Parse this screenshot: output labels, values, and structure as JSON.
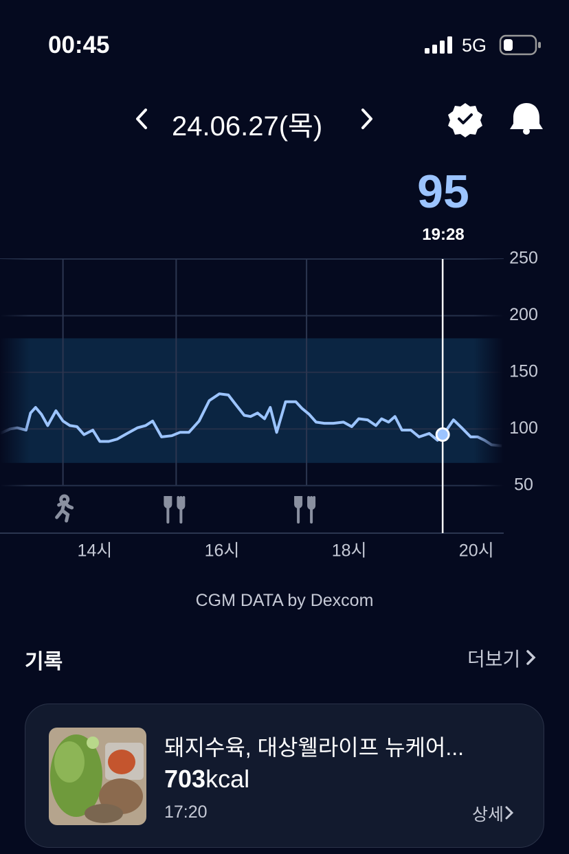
{
  "status_bar": {
    "time": "00:45",
    "network": "5G"
  },
  "header": {
    "date": "24.06.27(목)"
  },
  "chart_data": {
    "type": "line",
    "color": "#9cc4ff",
    "grid": true,
    "cursor": {
      "x": 19.47,
      "value": 95,
      "time": "19:28"
    },
    "target_range": [
      70,
      180
    ],
    "xlim": [
      12.51,
      20.43
    ],
    "ylim": [
      8,
      250
    ],
    "yticks": [
      50,
      100,
      150,
      200,
      250
    ],
    "xticks": [
      {
        "value": 14,
        "label": "14시"
      },
      {
        "value": 16,
        "label": "16시"
      },
      {
        "value": 18,
        "label": "18시"
      },
      {
        "value": 20,
        "label": "20시"
      }
    ],
    "events": [
      {
        "icon": "run",
        "x": 13.5
      },
      {
        "icon": "meal",
        "x": 15.28
      },
      {
        "icon": "meal",
        "x": 17.33
      }
    ],
    "x": [
      12.51,
      12.67,
      12.78,
      12.92,
      12.99,
      13.07,
      13.16,
      13.26,
      13.39,
      13.5,
      13.61,
      13.72,
      13.83,
      13.97,
      14.08,
      14.22,
      14.35,
      14.51,
      14.67,
      14.8,
      14.91,
      15.05,
      15.21,
      15.34,
      15.48,
      15.64,
      15.8,
      15.96,
      16.1,
      16.21,
      16.35,
      16.45,
      16.56,
      16.67,
      16.76,
      16.86,
      17.0,
      17.16,
      17.26,
      17.37,
      17.48,
      17.61,
      17.75,
      17.91,
      18.04,
      18.15,
      18.29,
      18.42,
      18.51,
      18.62,
      18.72,
      18.83,
      18.97,
      19.1,
      19.26,
      19.39,
      19.48,
      19.64,
      19.77,
      19.91,
      20.02,
      20.13,
      20.24,
      20.4
    ],
    "values": [
      96,
      100,
      101,
      99,
      114,
      119,
      113,
      103,
      116,
      107,
      103,
      102,
      95,
      99,
      89,
      89,
      91,
      96,
      101,
      103,
      107,
      93,
      94,
      97,
      97,
      107,
      125,
      131,
      130,
      122,
      112,
      111,
      114,
      109,
      119,
      97,
      124,
      124,
      118,
      113,
      106,
      105,
      105,
      106,
      102,
      109,
      108,
      103,
      109,
      106,
      111,
      99,
      99,
      93,
      96,
      90,
      95,
      108,
      101,
      93,
      93,
      90,
      86,
      85
    ],
    "source": "CGM DATA by Dexcom"
  },
  "records": {
    "title": "기록",
    "more": "더보기",
    "items": [
      {
        "name": "돼지수육, 대상웰라이프 뉴케어...",
        "calories": 703,
        "calories_unit": "kcal",
        "time": "17:20",
        "detail": "상세"
      }
    ]
  }
}
